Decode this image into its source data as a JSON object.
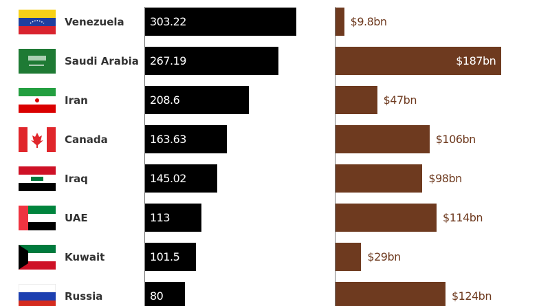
{
  "chart_data": [
    {
      "type": "bar",
      "orientation": "horizontal",
      "categories": [
        "Venezuela",
        "Saudi Arabia",
        "Iran",
        "Canada",
        "Iraq",
        "UAE",
        "Kuwait",
        "Russia"
      ],
      "values": [
        303.22,
        267.19,
        208.6,
        163.63,
        145.02,
        113,
        101.5,
        80
      ],
      "labels": [
        "303.22",
        "267.19",
        "208.6",
        "163.63",
        "145.02",
        "113",
        "101.5",
        "80"
      ],
      "color": "#000000"
    },
    {
      "type": "bar",
      "orientation": "horizontal",
      "categories": [
        "Venezuela",
        "Saudi Arabia",
        "Iran",
        "Canada",
        "Iraq",
        "UAE",
        "Kuwait",
        "Russia"
      ],
      "values": [
        9.8,
        187,
        47,
        106,
        98,
        114,
        29,
        124
      ],
      "labels": [
        "$9.8bn",
        "$187bn",
        "$47bn",
        "$106bn",
        "$98bn",
        "$114bn",
        "$29bn",
        "$124bn"
      ],
      "color": "#6e3a1f"
    }
  ],
  "flags": [
    "venezuela-flag",
    "saudi-arabia-flag",
    "iran-flag",
    "canada-flag",
    "iraq-flag",
    "uae-flag",
    "kuwait-flag",
    "russia-flag"
  ]
}
